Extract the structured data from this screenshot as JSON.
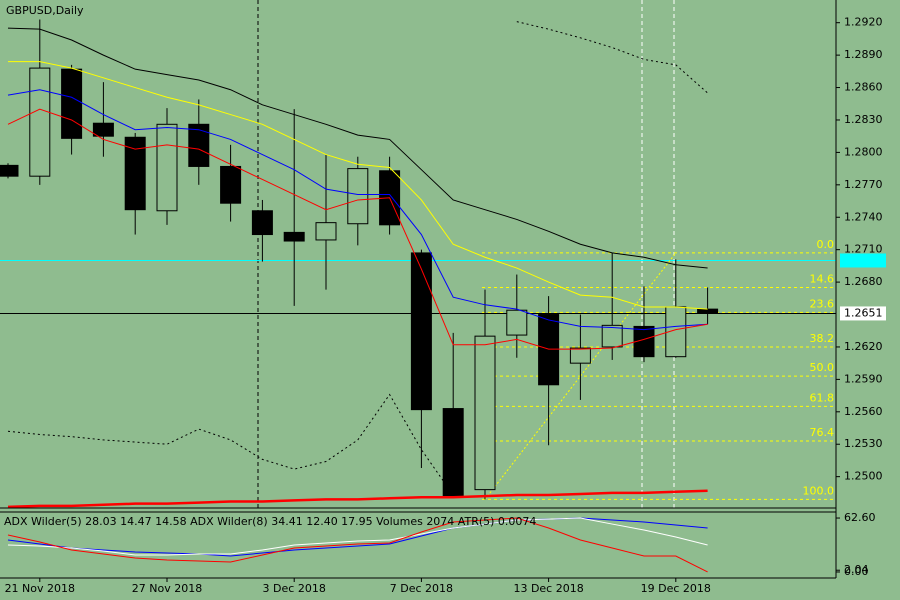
{
  "chart_data": [
    {
      "type": "candlestick",
      "title": "GBPUSD,Daily",
      "background": "#8fbc8f",
      "categories": [
        null,
        "21 Nov 2018",
        null,
        null,
        null,
        "27 Nov 2018",
        null,
        null,
        null,
        "3 Dec 2018",
        null,
        null,
        null,
        "7 Dec 2018",
        null,
        null,
        null,
        "13 Dec 2018",
        null,
        null,
        null,
        "19 Dec 2018",
        null
      ],
      "open": [
        1.2788,
        1.2778,
        1.2877,
        1.2827,
        1.2814,
        1.2746,
        1.2826,
        1.2787,
        1.2746,
        1.2726,
        1.2719,
        1.2734,
        1.2783,
        1.2707,
        1.2563,
        1.2488,
        1.2631,
        1.265,
        1.2605,
        1.262,
        1.2639,
        1.2611,
        1.2655
      ],
      "high": [
        1.279,
        1.2923,
        1.2881,
        1.2865,
        1.2818,
        1.2841,
        1.2849,
        1.2807,
        1.2756,
        1.284,
        1.2798,
        1.2796,
        1.2796,
        1.271,
        1.2633,
        1.2673,
        1.2687,
        1.2667,
        1.265,
        1.2707,
        1.2676,
        1.2701,
        1.2675
      ],
      "low": [
        1.2776,
        1.277,
        1.2798,
        1.2796,
        1.2724,
        1.2733,
        1.277,
        1.2736,
        1.2699,
        1.2658,
        1.2673,
        1.2714,
        1.2724,
        1.2508,
        1.2481,
        1.2479,
        1.261,
        1.2529,
        1.2571,
        1.2608,
        1.2606,
        1.261,
        1.2641
      ],
      "close": [
        1.2778,
        1.2878,
        1.2813,
        1.2815,
        1.2747,
        1.2826,
        1.2787,
        1.2753,
        1.2724,
        1.2718,
        1.2735,
        1.2785,
        1.2733,
        1.2562,
        1.2481,
        1.263,
        1.2654,
        1.2585,
        1.2619,
        1.264,
        1.2611,
        1.2657,
        1.2651
      ],
      "up_color": "#8fbc8f",
      "down_color": "#000000",
      "series": [
        {
          "color": "#ffff00",
          "style": "solid",
          "values": [
            1.2884,
            1.2884,
            1.2878,
            1.2869,
            1.286,
            1.2851,
            1.2844,
            1.2835,
            1.2826,
            1.2812,
            1.2798,
            1.2789,
            1.2786,
            1.2756,
            1.2715,
            1.2703,
            1.2693,
            1.268,
            1.2668,
            1.2666,
            1.2657,
            1.2657,
            1.2655
          ]
        },
        {
          "color": "#0000ff",
          "style": "solid",
          "values": [
            1.2853,
            1.2858,
            1.2851,
            1.2835,
            1.2821,
            1.2823,
            1.2821,
            1.2812,
            1.2798,
            1.2784,
            1.2766,
            1.2761,
            1.2761,
            1.2724,
            1.2666,
            1.2659,
            1.2655,
            1.2645,
            1.2639,
            1.2638,
            1.2636,
            1.2639,
            1.2641
          ]
        },
        {
          "color": "#ff0000",
          "style": "solid",
          "values": [
            1.2826,
            1.284,
            1.283,
            1.2812,
            1.2803,
            1.2807,
            1.2803,
            1.2789,
            1.2775,
            1.2761,
            1.2747,
            1.2756,
            1.2758,
            1.2692,
            1.2622,
            1.2622,
            1.2627,
            1.2618,
            1.2618,
            1.2619,
            1.2627,
            1.2636,
            1.2641
          ]
        },
        {
          "color": "#000000",
          "style": "solid",
          "values": [
            1.2915,
            1.2914,
            1.2904,
            1.289,
            1.2877,
            1.2872,
            1.2867,
            1.2858,
            1.2844,
            1.2835,
            1.2826,
            1.2816,
            1.2812,
            1.2784,
            1.2756,
            1.2747,
            1.2738,
            1.2727,
            1.2715,
            1.2707,
            1.2703,
            1.2696,
            1.2693
          ]
        },
        {
          "color": "#000000",
          "style": "dotted",
          "values": [
            null,
            null,
            null,
            null,
            null,
            null,
            null,
            null,
            null,
            null,
            null,
            null,
            null,
            null,
            null,
            null,
            1.2921,
            1.2914,
            1.2906,
            1.2897,
            1.2886,
            1.2881,
            1.2855
          ]
        },
        {
          "color": "#000000",
          "style": "dotted",
          "values": [
            1.2542,
            1.2539,
            1.2537,
            1.2534,
            1.2532,
            1.253,
            1.2544,
            1.2534,
            1.2516,
            1.2507,
            1.2514,
            1.2534,
            1.2576,
            1.2525,
            1.2483,
            null,
            null,
            null,
            null,
            null,
            null,
            null,
            null
          ]
        },
        {
          "color": "#ff0000",
          "style": "thick",
          "values": [
            1.2472,
            1.2473,
            1.2473,
            1.2474,
            1.2475,
            1.2475,
            1.2476,
            1.2477,
            1.2477,
            1.2478,
            1.2479,
            1.2479,
            1.248,
            1.2481,
            1.2481,
            1.2482,
            1.2483,
            1.2483,
            1.2484,
            1.2485,
            1.2485,
            1.2486,
            1.2487
          ]
        }
      ],
      "fibonacci": {
        "color": "#ffff00",
        "levels": [
          {
            "ratio_label": "0.0",
            "price": 1.2707
          },
          {
            "ratio_label": "14.6",
            "price": 1.2675
          },
          {
            "ratio_label": "23.6",
            "price": 1.2652
          },
          {
            "ratio_label": "38.2",
            "price": 1.262
          },
          {
            "ratio_label": "50.0",
            "price": 1.2593
          },
          {
            "ratio_label": "61.8",
            "price": 1.2565
          },
          {
            "ratio_label": "76.4",
            "price": 1.2533
          },
          {
            "ratio_label": "100.0",
            "price": 1.2479
          }
        ]
      },
      "level_line": {
        "value": 1.27,
        "color": "#00ffff"
      },
      "current_price": 1.2651,
      "ylim": [
        1.2471,
        1.2941
      ],
      "yticks": [
        {
          "value": 1.292,
          "label": "1.2920"
        },
        {
          "value": 1.289,
          "label": "1.2890"
        },
        {
          "value": 1.286,
          "label": "1.2860"
        },
        {
          "value": 1.283,
          "label": "1.2830"
        },
        {
          "value": 1.28,
          "label": "1.2800"
        },
        {
          "value": 1.277,
          "label": "1.2770"
        },
        {
          "value": 1.274,
          "label": "1.2740"
        },
        {
          "value": 1.271,
          "label": "1.2710"
        },
        {
          "value": 1.268,
          "label": "1.2680"
        },
        {
          "value": 1.262,
          "label": "1.2620"
        },
        {
          "value": 1.259,
          "label": "1.2590"
        },
        {
          "value": 1.256,
          "label": "1.2560"
        },
        {
          "value": 1.253,
          "label": "1.2530"
        },
        {
          "value": 1.25,
          "label": "1.2500"
        }
      ],
      "grid": false
    },
    {
      "type": "line",
      "title": "ADX Wilder(5) 28.03 14.47 14.58 ADX Wilder(8) 34.41 12.40 17.95 Volumes 2074 ATR(5) 0.0074",
      "series": [
        {
          "color": "#0000ff",
          "values": [
            37.1,
            32.5,
            27.8,
            25.5,
            23.2,
            22.0,
            20.9,
            18.5,
            22.0,
            25.5,
            27.8,
            30.1,
            32.5,
            41.7,
            51.0,
            55.6,
            60.3,
            61.4,
            62.6,
            60.3,
            58.0,
            54.5,
            51.0
          ]
        },
        {
          "color": "#ffffff",
          "values": [
            31.3,
            30.1,
            27.8,
            24.3,
            19.7,
            19.7,
            20.9,
            20.9,
            25.5,
            31.3,
            33.6,
            35.9,
            37.1,
            44.1,
            51.0,
            55.6,
            60.3,
            61.4,
            62.6,
            55.6,
            48.7,
            40.6,
            31.3
          ]
        },
        {
          "color": "#ff0000",
          "values": [
            42.9,
            34.8,
            25.5,
            20.9,
            16.2,
            13.9,
            12.8,
            11.6,
            19.7,
            27.8,
            30.1,
            32.5,
            33.6,
            46.4,
            58.0,
            60.3,
            62.6,
            51.0,
            37.1,
            27.8,
            18.5,
            18.5,
            0.0
          ]
        }
      ],
      "ylim": [
        -7,
        69.6
      ],
      "yticks": [
        {
          "value": 62.6,
          "label": "62.60"
        },
        {
          "value": 2.04,
          "label": "2.04"
        },
        {
          "value": 0,
          "label": "0.00"
        }
      ]
    }
  ]
}
